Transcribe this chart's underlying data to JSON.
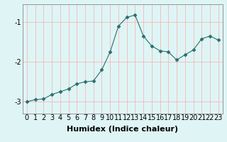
{
  "x": [
    0,
    1,
    2,
    3,
    4,
    5,
    6,
    7,
    8,
    9,
    10,
    11,
    12,
    13,
    14,
    15,
    16,
    17,
    18,
    19,
    20,
    21,
    22,
    23
  ],
  "y": [
    -3.0,
    -2.95,
    -2.93,
    -2.82,
    -2.75,
    -2.68,
    -2.55,
    -2.5,
    -2.48,
    -2.2,
    -1.75,
    -1.1,
    -0.88,
    -0.82,
    -1.35,
    -1.6,
    -1.72,
    -1.75,
    -1.95,
    -1.82,
    -1.7,
    -1.42,
    -1.35,
    -1.45
  ],
  "line_color": "#2a6e6e",
  "marker": "D",
  "marker_size": 2.5,
  "bg_color": "#dff5f5",
  "grid_color": "#f5b8b8",
  "xlabel": "Humidex (Indice chaleur)",
  "ylabel": "",
  "ylim": [
    -3.3,
    -0.55
  ],
  "xlim": [
    -0.5,
    23.5
  ],
  "yticks": [
    -3,
    -2,
    -1
  ],
  "xtick_labels": [
    "0",
    "1",
    "2",
    "3",
    "4",
    "5",
    "6",
    "7",
    "8",
    "9",
    "10",
    "11",
    "12",
    "13",
    "14",
    "15",
    "16",
    "17",
    "18",
    "19",
    "20",
    "21",
    "22",
    "23"
  ],
  "xlabel_fontsize": 8,
  "tick_fontsize": 7,
  "linewidth": 0.8
}
